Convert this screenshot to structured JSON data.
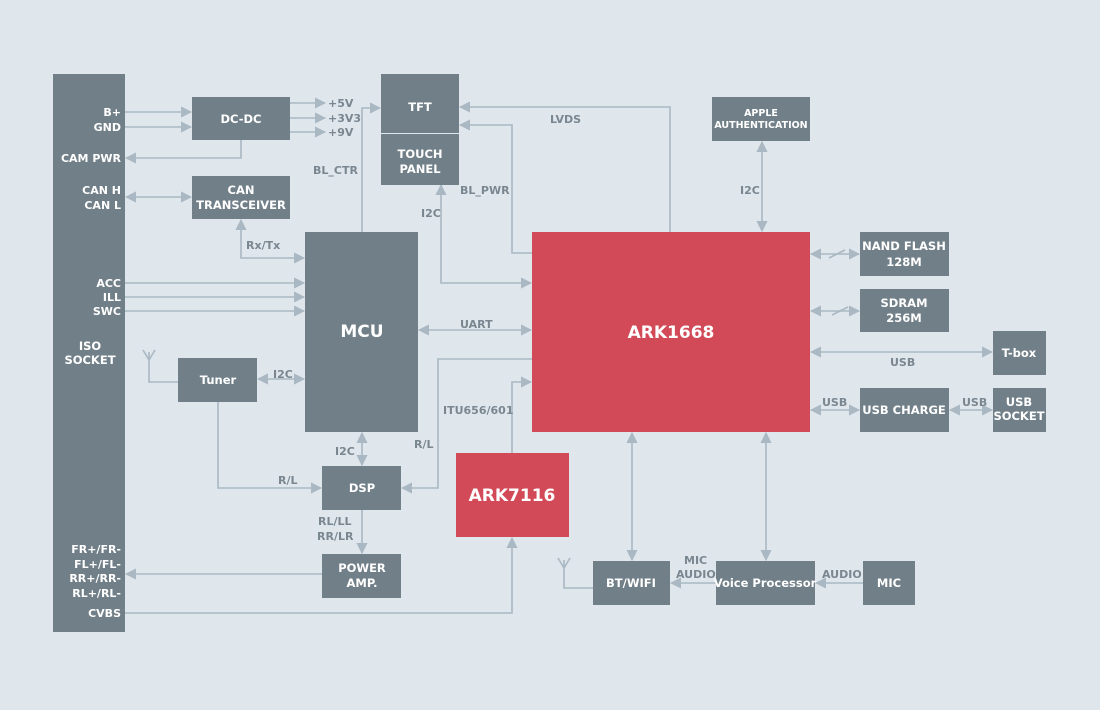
{
  "colors": {
    "background": "#dfe6ec",
    "block": "#717f88",
    "chip": "#d24a57",
    "line": "#a9b8c3",
    "label": "#7a8790"
  },
  "iso_socket": {
    "title": [
      "ISO",
      "SOCKET"
    ],
    "pins": [
      "B+",
      "GND",
      "CAM PWR",
      "CAN H",
      "CAN L",
      "ACC",
      "ILL",
      "SWC",
      "FR+/FR-",
      "FL+/FL-",
      "RR+/RR-",
      "RL+/RL-",
      "CVBS"
    ]
  },
  "blocks": {
    "dcdc": "DC-DC",
    "can": [
      "CAN",
      "TRANSCEIVER"
    ],
    "tft": "TFT",
    "touch": [
      "TOUCH",
      "PANEL"
    ],
    "mcu": "MCU",
    "tuner": "Tuner",
    "dsp": "DSP",
    "amp": [
      "POWER",
      "AMP."
    ],
    "ark7116": "ARK7116",
    "ark1668": "ARK1668",
    "apple": [
      "APPLE",
      "AUTHENTICATION"
    ],
    "nand": [
      "NAND FLASH",
      "128M"
    ],
    "sdram": [
      "SDRAM",
      "256M"
    ],
    "tbox": "T-box",
    "usb_charge": "USB CHARGE",
    "usb_socket": [
      "USB",
      "SOCKET"
    ],
    "btwifi": "BT/WIFI",
    "voice": "Voice Processor",
    "mic": "MIC"
  },
  "signals": {
    "v5": "+5V",
    "v3v3": "+3V3",
    "v9": "+9V",
    "bl_ctr": "BL_CTR",
    "bl_pwr": "BL_PWR",
    "lvds": "LVDS",
    "i2c_tft": "I2C",
    "i2c_apple": "I2C",
    "rxtx": "Rx/Tx",
    "uart": "UART",
    "i2c_tuner": "I2C",
    "rl_tuner": "R/L",
    "i2c_dsp": "I2C",
    "rl_ark": "R/L",
    "itu": "ITU656/601",
    "spk": [
      "RL/LL",
      "RR/LR"
    ],
    "usb_tbox": "USB",
    "usb_charge": "USB",
    "usb_socket": "USB",
    "mic_audio": [
      "MIC",
      "AUDIO"
    ],
    "audio": "AUDIO"
  }
}
